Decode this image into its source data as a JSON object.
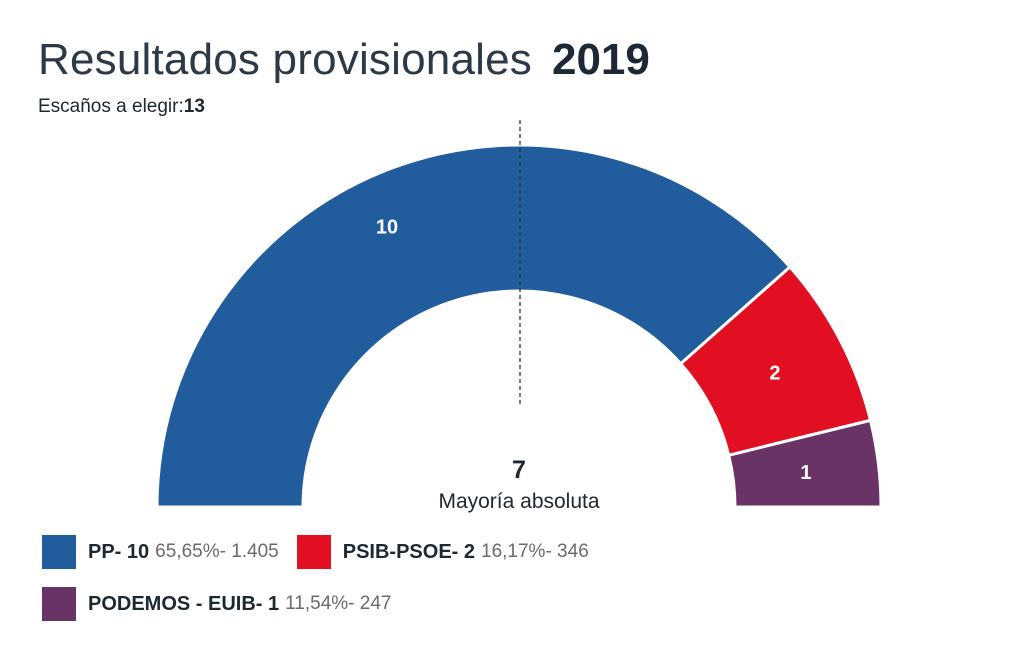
{
  "header": {
    "title": "Resultados provisionales",
    "year": "2019",
    "seats_label": "Escaños a elegir:",
    "seats_value": "13"
  },
  "majority": {
    "value": "7",
    "label": "Mayoría absoluta"
  },
  "legend": [
    {
      "party": "PP- 10",
      "stats": "65,65%- 1.405",
      "color": "#215d9c"
    },
    {
      "party": "PSIB-PSOE- 2",
      "stats": "16,17%- 346",
      "color": "#e10f21"
    },
    {
      "party": "PODEMOS - EUIB- 1",
      "stats": "11,54%- 247",
      "color": "#6a3366"
    }
  ],
  "chart_data": {
    "type": "pie",
    "subtype": "hemicycle",
    "total_seats": 13,
    "majority": 7,
    "categories": [
      "PP",
      "PSIB-PSOE",
      "PODEMOS - EUIB"
    ],
    "values": [
      10,
      2,
      1
    ],
    "colors": [
      "#215d9c",
      "#e10f21",
      "#6a3366"
    ],
    "percent": [
      65.65,
      16.17,
      11.54
    ],
    "votes": [
      1405,
      346,
      247
    ]
  }
}
